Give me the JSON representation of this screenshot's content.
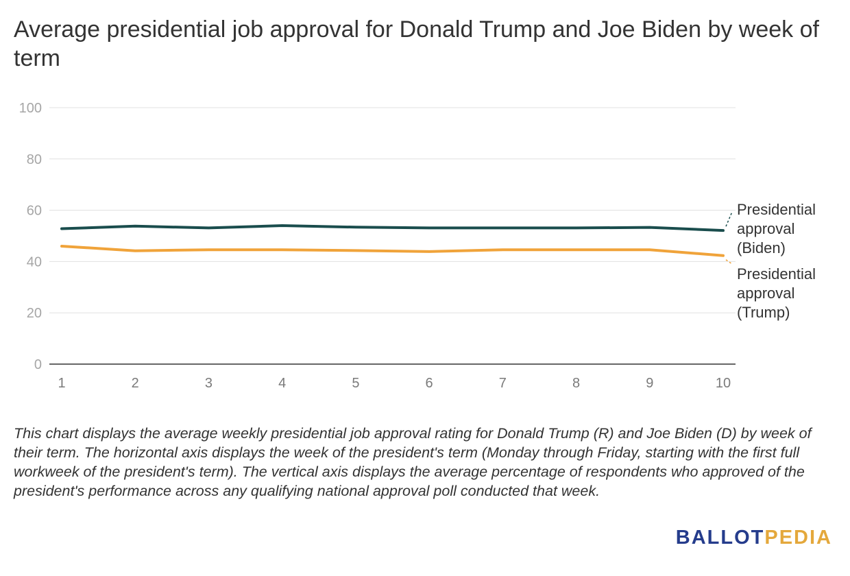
{
  "title": "Average presidential job approval for Donald Trump and Joe Biden by week of term",
  "description": "This chart displays the average weekly presidential job approval rating for Donald Trump (R) and Joe Biden (D) by week of their term. The horizontal axis displays the week of the president's term (Monday through Friday, starting with the first full workweek of the president's term). The vertical axis displays the average percentage of respondents who approved of the president's performance across any qualifying national approval poll conducted that week.",
  "logo": {
    "part1": "BALLOT",
    "part2": "PEDIA",
    "colors": {
      "part1": "#253c8c",
      "part2": "#e4a83c"
    }
  },
  "chart_data": {
    "type": "line",
    "title": "Average presidential job approval for Donald Trump and Joe Biden by week of term",
    "xlabel": "",
    "ylabel": "",
    "x": [
      1,
      2,
      3,
      4,
      5,
      6,
      7,
      8,
      9,
      10
    ],
    "ylim": [
      0,
      100
    ],
    "yticks": [
      0,
      20,
      40,
      60,
      80,
      100
    ],
    "grid": true,
    "legend": "right, inline labels at line ends",
    "series": [
      {
        "name": "Presidential approval (Biden)",
        "label_lines": [
          "Presidential",
          "approval",
          "(Biden)"
        ],
        "color": "#1a4d4d",
        "values": [
          52.8,
          53.8,
          53.1,
          54.0,
          53.4,
          53.1,
          53.1,
          53.1,
          53.3,
          52.1
        ]
      },
      {
        "name": "Presidential approval (Trump)",
        "label_lines": [
          "Presidential",
          "approval",
          "(Trump)"
        ],
        "color": "#f0a33a",
        "values": [
          46.0,
          44.2,
          44.6,
          44.6,
          44.3,
          43.9,
          44.6,
          44.6,
          44.6,
          42.3
        ]
      }
    ]
  }
}
